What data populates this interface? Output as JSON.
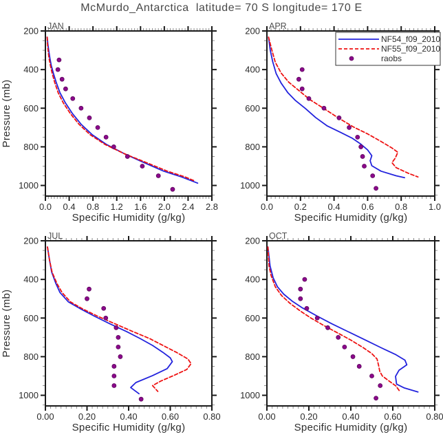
{
  "title": "McMurdo_Antarctica  latitude= 70 S longitude= 170 E",
  "colors": {
    "nf54": "#2222dd",
    "nf55": "#ee1111",
    "raobs": "#8b098b",
    "raobs_edge": "#5c075c",
    "frame": "#1a1a1a",
    "tick_minor": "#8a8a8a",
    "tick_label": "#2b2b2b",
    "axis_title": "#2e2e2e",
    "panel_label": "#4f4f4f",
    "legend_border": "#333333",
    "legend_bg": "#ffffff"
  },
  "legend": {
    "entries": [
      {
        "label": "NF54_f09_2010",
        "marker": "solid-line",
        "color_key": "nf54"
      },
      {
        "label": "NF55_f09_2010",
        "marker": "dashed-line",
        "color_key": "nf55"
      },
      {
        "label": "raobs",
        "marker": "dot",
        "color_key": "raobs"
      }
    ]
  },
  "chart_data": [
    {
      "type": "line",
      "label": "JAN",
      "xlabel": "Specific Humidity (g/kg)",
      "ylabel": "Pressure (mb)",
      "xlim": [
        0.0,
        2.8
      ],
      "ylim": [
        200,
        1055
      ],
      "xticks": [
        0.0,
        0.4,
        0.8,
        1.2,
        1.6,
        2.0,
        2.4,
        2.8
      ],
      "xtick_labels": [
        "0.0",
        "0.4",
        "0.8",
        "1.2",
        "1.6",
        "2.0",
        "2.4",
        "2.8"
      ],
      "x_minor_step": 0.05,
      "yticks": [
        200,
        400,
        600,
        800,
        1000
      ],
      "ytick_labels": [
        "200",
        "400",
        "600",
        "800",
        "1000"
      ],
      "y_minor_step": 50,
      "series": [
        {
          "name": "NF54_f09_2010",
          "style": "solid",
          "color_key": "nf54",
          "points": [
            [
              0.03,
              232
            ],
            [
              0.04,
              265
            ],
            [
              0.055,
              300
            ],
            [
              0.075,
              340
            ],
            [
              0.1,
              380
            ],
            [
              0.135,
              420
            ],
            [
              0.18,
              465
            ],
            [
              0.245,
              520
            ],
            [
              0.335,
              572
            ],
            [
              0.455,
              628
            ],
            [
              0.6,
              683
            ],
            [
              0.79,
              738
            ],
            [
              1.03,
              788
            ],
            [
              1.33,
              836
            ],
            [
              1.66,
              882
            ],
            [
              1.99,
              926
            ],
            [
              2.29,
              956
            ],
            [
              2.56,
              988
            ]
          ]
        },
        {
          "name": "NF55_f09_2010",
          "style": "dashed",
          "color_key": "nf55",
          "points": [
            [
              0.03,
              232
            ],
            [
              0.035,
              265
            ],
            [
              0.045,
              300
            ],
            [
              0.06,
              340
            ],
            [
              0.085,
              380
            ],
            [
              0.115,
              420
            ],
            [
              0.155,
              465
            ],
            [
              0.215,
              520
            ],
            [
              0.3,
              572
            ],
            [
              0.42,
              628
            ],
            [
              0.565,
              683
            ],
            [
              0.755,
              738
            ],
            [
              1.005,
              788
            ],
            [
              1.33,
              836
            ],
            [
              1.7,
              882
            ],
            [
              2.05,
              926
            ],
            [
              2.35,
              956
            ],
            [
              2.52,
              978
            ]
          ]
        },
        {
          "name": "raobs",
          "style": "dots",
          "color_key": "raobs",
          "points": [
            [
              0.23,
              350
            ],
            [
              0.21,
              400
            ],
            [
              0.28,
              450
            ],
            [
              0.34,
              500
            ],
            [
              0.46,
              550
            ],
            [
              0.6,
              600
            ],
            [
              0.74,
              650
            ],
            [
              0.88,
              700
            ],
            [
              1.02,
              750
            ],
            [
              1.15,
              800
            ],
            [
              1.38,
              850
            ],
            [
              1.63,
              900
            ],
            [
              1.9,
              950
            ],
            [
              2.14,
              1020
            ]
          ]
        }
      ]
    },
    {
      "type": "line",
      "label": "APR",
      "xlabel": "Specific Humidity (g/kg)",
      "ylabel": null,
      "xlim": [
        0.0,
        1.0
      ],
      "ylim": [
        200,
        1055
      ],
      "xticks": [
        0.0,
        0.2,
        0.4,
        0.6,
        0.8,
        1.0
      ],
      "xtick_labels": [
        "0.0",
        "0.2",
        "0.4",
        "0.6",
        "0.8",
        "1.0"
      ],
      "x_minor_step": 0.025,
      "yticks": [
        200,
        400,
        600,
        800,
        1000
      ],
      "ytick_labels": [
        "200",
        "400",
        "600",
        "800",
        "1000"
      ],
      "y_minor_step": 50,
      "series": [
        {
          "name": "NF54_f09_2010",
          "style": "solid",
          "color_key": "nf54",
          "points": [
            [
              0.01,
              232
            ],
            [
              0.02,
              300
            ],
            [
              0.035,
              360
            ],
            [
              0.055,
              420
            ],
            [
              0.085,
              470
            ],
            [
              0.125,
              520
            ],
            [
              0.17,
              560
            ],
            [
              0.23,
              602
            ],
            [
              0.29,
              648
            ],
            [
              0.36,
              692
            ],
            [
              0.44,
              726
            ],
            [
              0.51,
              756
            ],
            [
              0.56,
              786
            ],
            [
              0.6,
              816
            ],
            [
              0.625,
              846
            ],
            [
              0.615,
              872
            ],
            [
              0.625,
              898
            ],
            [
              0.68,
              926
            ],
            [
              0.77,
              950
            ],
            [
              0.82,
              960
            ]
          ]
        },
        {
          "name": "NF55_f09_2010",
          "style": "dashed",
          "color_key": "nf55",
          "points": [
            [
              0.01,
              232
            ],
            [
              0.03,
              300
            ],
            [
              0.05,
              362
            ],
            [
              0.085,
              418
            ],
            [
              0.13,
              465
            ],
            [
              0.19,
              508
            ],
            [
              0.255,
              555
            ],
            [
              0.34,
              602
            ],
            [
              0.425,
              650
            ],
            [
              0.515,
              697
            ],
            [
              0.6,
              733
            ],
            [
              0.68,
              772
            ],
            [
              0.745,
              806
            ],
            [
              0.78,
              828
            ],
            [
              0.765,
              858
            ],
            [
              0.745,
              882
            ],
            [
              0.77,
              908
            ],
            [
              0.84,
              936
            ],
            [
              0.9,
              956
            ]
          ]
        },
        {
          "name": "raobs",
          "style": "dots",
          "color_key": "raobs",
          "points": [
            [
              0.21,
              400
            ],
            [
              0.19,
              450
            ],
            [
              0.21,
              500
            ],
            [
              0.25,
              550
            ],
            [
              0.34,
              600
            ],
            [
              0.43,
              650
            ],
            [
              0.49,
              700
            ],
            [
              0.54,
              750
            ],
            [
              0.56,
              800
            ],
            [
              0.57,
              850
            ],
            [
              0.58,
              900
            ],
            [
              0.63,
              950
            ],
            [
              0.65,
              1015
            ]
          ]
        }
      ]
    },
    {
      "type": "line",
      "label": "JUL",
      "xlabel": "Specific Humidity (g/kg)",
      "ylabel": "Pressure (mb)",
      "xlim": [
        0.0,
        0.8
      ],
      "ylim": [
        200,
        1055
      ],
      "xticks": [
        0.0,
        0.2,
        0.4,
        0.6,
        0.8
      ],
      "xtick_labels": [
        "0.00",
        "0.20",
        "0.40",
        "0.60",
        "0.80"
      ],
      "x_minor_step": 0.025,
      "yticks": [
        200,
        400,
        600,
        800,
        1000
      ],
      "ytick_labels": [
        "200",
        "400",
        "600",
        "800",
        "1000"
      ],
      "y_minor_step": 50,
      "series": [
        {
          "name": "NF54_f09_2010",
          "style": "solid",
          "color_key": "nf54",
          "points": [
            [
              0.01,
              232
            ],
            [
              0.02,
              300
            ],
            [
              0.03,
              362
            ],
            [
              0.05,
              420
            ],
            [
              0.07,
              468
            ],
            [
              0.11,
              516
            ],
            [
              0.17,
              553
            ],
            [
              0.235,
              590
            ],
            [
              0.31,
              630
            ],
            [
              0.39,
              670
            ],
            [
              0.455,
              706
            ],
            [
              0.515,
              742
            ],
            [
              0.565,
              778
            ],
            [
              0.6,
              806
            ],
            [
              0.61,
              826
            ],
            [
              0.585,
              862
            ],
            [
              0.515,
              898
            ],
            [
              0.435,
              934
            ],
            [
              0.41,
              960
            ],
            [
              0.45,
              992
            ]
          ]
        },
        {
          "name": "NF55_f09_2010",
          "style": "dashed",
          "color_key": "nf55",
          "points": [
            [
              0.01,
              232
            ],
            [
              0.02,
              300
            ],
            [
              0.032,
              362
            ],
            [
              0.055,
              420
            ],
            [
              0.08,
              468
            ],
            [
              0.12,
              516
            ],
            [
              0.18,
              553
            ],
            [
              0.25,
              590
            ],
            [
              0.335,
              630
            ],
            [
              0.42,
              670
            ],
            [
              0.5,
              706
            ],
            [
              0.565,
              742
            ],
            [
              0.63,
              778
            ],
            [
              0.685,
              812
            ],
            [
              0.7,
              836
            ],
            [
              0.68,
              866
            ],
            [
              0.62,
              896
            ],
            [
              0.555,
              926
            ],
            [
              0.515,
              950
            ],
            [
              0.54,
              980
            ]
          ]
        },
        {
          "name": "raobs",
          "style": "dots",
          "color_key": "raobs",
          "points": [
            [
              0.21,
              450
            ],
            [
              0.2,
              500
            ],
            [
              0.28,
              550
            ],
            [
              0.29,
              600
            ],
            [
              0.34,
              650
            ],
            [
              0.35,
              700
            ],
            [
              0.35,
              750
            ],
            [
              0.36,
              800
            ],
            [
              0.33,
              850
            ],
            [
              0.33,
              900
            ],
            [
              0.33,
              950
            ],
            [
              0.46,
              1020
            ]
          ]
        }
      ]
    },
    {
      "type": "line",
      "label": "OCT",
      "xlabel": "Specific Humidity (g/kg)",
      "ylabel": null,
      "xlim": [
        0.0,
        0.8
      ],
      "ylim": [
        200,
        1055
      ],
      "xticks": [
        0.0,
        0.2,
        0.4,
        0.6,
        0.8
      ],
      "xtick_labels": [
        "0.00",
        "0.20",
        "0.40",
        "0.60",
        "0.80"
      ],
      "x_minor_step": 0.025,
      "yticks": [
        200,
        400,
        600,
        800,
        1000
      ],
      "ytick_labels": [
        "200",
        "400",
        "600",
        "800",
        "1000"
      ],
      "y_minor_step": 50,
      "series": [
        {
          "name": "NF54_f09_2010",
          "style": "solid",
          "color_key": "nf54",
          "points": [
            [
              0.005,
              232
            ],
            [
              0.015,
              330
            ],
            [
              0.03,
              392
            ],
            [
              0.05,
              438
            ],
            [
              0.08,
              476
            ],
            [
              0.12,
              512
            ],
            [
              0.17,
              548
            ],
            [
              0.24,
              590
            ],
            [
              0.31,
              630
            ],
            [
              0.39,
              672
            ],
            [
              0.47,
              714
            ],
            [
              0.545,
              754
            ],
            [
              0.615,
              790
            ],
            [
              0.658,
              818
            ],
            [
              0.667,
              842
            ],
            [
              0.63,
              870
            ],
            [
              0.613,
              902
            ],
            [
              0.618,
              942
            ],
            [
              0.655,
              962
            ],
            [
              0.72,
              983
            ]
          ]
        },
        {
          "name": "NF55_f09_2010",
          "style": "dashed",
          "color_key": "nf55",
          "points": [
            [
              0.005,
              232
            ],
            [
              0.01,
              330
            ],
            [
              0.02,
              380
            ],
            [
              0.04,
              438
            ],
            [
              0.07,
              484
            ],
            [
              0.11,
              524
            ],
            [
              0.16,
              564
            ],
            [
              0.21,
              600
            ],
            [
              0.27,
              638
            ],
            [
              0.335,
              676
            ],
            [
              0.4,
              714
            ],
            [
              0.46,
              754
            ],
            [
              0.5,
              784
            ],
            [
              0.525,
              812
            ],
            [
              0.532,
              844
            ],
            [
              0.538,
              876
            ],
            [
              0.55,
              900
            ],
            [
              0.585,
              928
            ],
            [
              0.615,
              952
            ],
            [
              0.635,
              982
            ]
          ]
        },
        {
          "name": "raobs",
          "style": "dots",
          "color_key": "raobs",
          "points": [
            [
              0.18,
              400
            ],
            [
              0.16,
              450
            ],
            [
              0.16,
              500
            ],
            [
              0.19,
              550
            ],
            [
              0.24,
              600
            ],
            [
              0.29,
              650
            ],
            [
              0.34,
              700
            ],
            [
              0.37,
              750
            ],
            [
              0.41,
              800
            ],
            [
              0.44,
              850
            ],
            [
              0.5,
              900
            ],
            [
              0.54,
              950
            ],
            [
              0.52,
              1015
            ]
          ]
        }
      ]
    }
  ]
}
